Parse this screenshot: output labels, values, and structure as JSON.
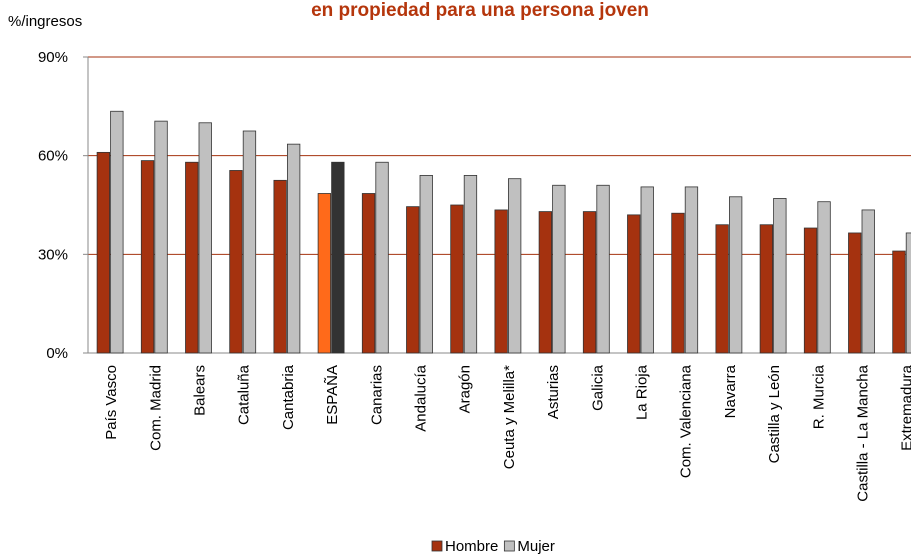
{
  "chart_data": {
    "type": "bar",
    "title": "en propiedad para una persona joven",
    "y_label": "%/ingresos",
    "categories": [
      "País Vasco",
      "Com. Madrid",
      "Balears",
      "Cataluña",
      "Cantabria",
      "ESPAÑA",
      "Canarias",
      "Andalucía",
      "Aragón",
      "Ceuta y Melilla*",
      "Asturias",
      "Galicia",
      "La Rioja",
      "Com. Valenciana",
      "Navarra",
      "Castilla y León",
      "R. Murcia",
      "Castilla - La Mancha",
      "Extremadura"
    ],
    "series": [
      {
        "name": "Hombre",
        "color": "#a5320f",
        "colors": [
          "#a5320f",
          "#a5320f",
          "#a5320f",
          "#a5320f",
          "#a5320f",
          "#ff6a1a",
          "#a5320f",
          "#a5320f",
          "#a5320f",
          "#a5320f",
          "#a5320f",
          "#a5320f",
          "#a5320f",
          "#a5320f",
          "#a5320f",
          "#a5320f",
          "#a5320f",
          "#a5320f",
          "#a5320f"
        ],
        "values": [
          61,
          58.5,
          58,
          55.5,
          52.5,
          48.5,
          48.5,
          44.5,
          45,
          43.5,
          43,
          43,
          42,
          42.5,
          39,
          39,
          38,
          36.5,
          31
        ]
      },
      {
        "name": "Mujer",
        "color": "#c0c0c0",
        "colors": [
          "#c0c0c0",
          "#c0c0c0",
          "#c0c0c0",
          "#c0c0c0",
          "#c0c0c0",
          "#333333",
          "#c0c0c0",
          "#c0c0c0",
          "#c0c0c0",
          "#c0c0c0",
          "#c0c0c0",
          "#c0c0c0",
          "#c0c0c0",
          "#c0c0c0",
          "#c0c0c0",
          "#c0c0c0",
          "#c0c0c0",
          "#c0c0c0",
          "#c0c0c0"
        ],
        "values": [
          73.5,
          70.5,
          70,
          67.5,
          63.5,
          58,
          58,
          54,
          54,
          53,
          51,
          51,
          50.5,
          50.5,
          47.5,
          47,
          46,
          43.5,
          36.5
        ]
      }
    ],
    "ylim": [
      0,
      90
    ],
    "yticks": [
      {
        "value": 0,
        "label": "0%"
      },
      {
        "value": 30,
        "label": "30%"
      },
      {
        "value": 60,
        "label": "60%"
      },
      {
        "value": 90,
        "label": "90%"
      }
    ],
    "grid": true,
    "grid_color": "#a5320f",
    "legend": "bottom"
  }
}
